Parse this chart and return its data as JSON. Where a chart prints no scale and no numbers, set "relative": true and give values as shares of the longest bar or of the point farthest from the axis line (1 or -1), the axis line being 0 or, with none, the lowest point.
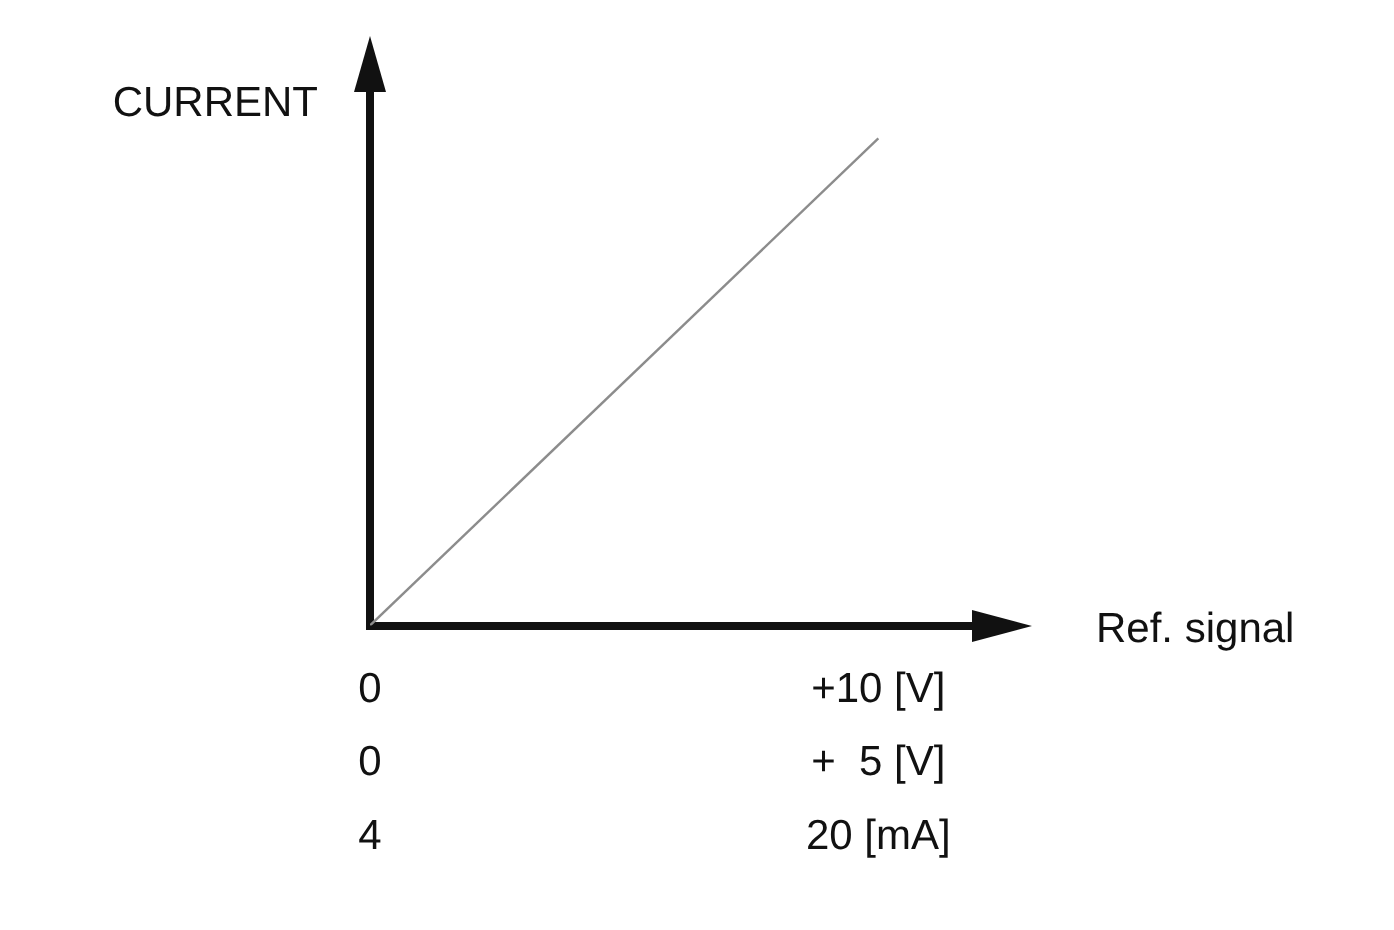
{
  "chart_data": {
    "type": "line",
    "ylabel": "CURRENT",
    "xlabel": "Ref. signal",
    "relative": true,
    "categories": [
      "0\n0\n4",
      "+10 [V]\n+  5 [V]\n20 [mA]"
    ],
    "series": [
      {
        "color": "#8c8c8c",
        "values": [
          0,
          1
        ]
      }
    ],
    "grid": false,
    "legend": false,
    "marker": "none",
    "line_style": "solid"
  }
}
